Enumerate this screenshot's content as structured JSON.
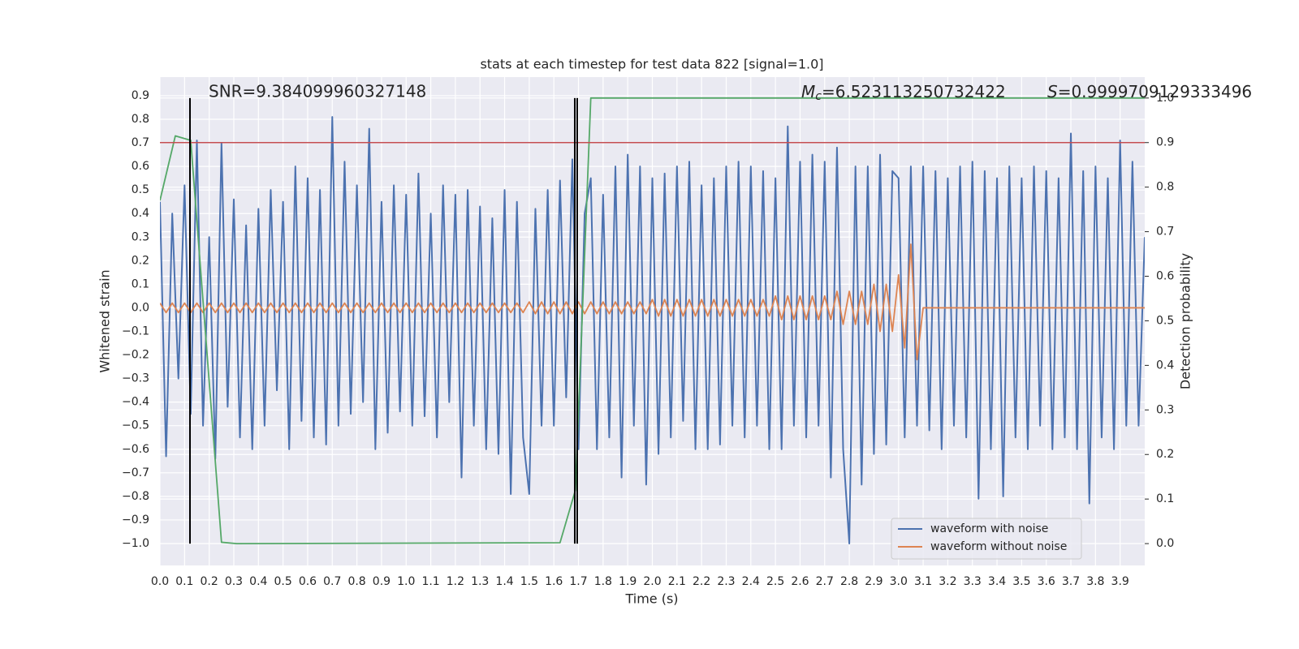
{
  "chart_data": {
    "type": "line",
    "title": "stats at each timestep for test data 822 [signal=1.0]",
    "xlabel": "Time (s)",
    "ylabel": "Whitened strain",
    "y2label": "Detection probability",
    "annotations": {
      "snr": "SNR=9.384099960327148",
      "mc": {
        "symbol": "M",
        "subscript": "c",
        "text": "=6.523113250732422"
      },
      "s": {
        "symbol": "S",
        "text": "=0.9999709129333496"
      }
    },
    "grid": true,
    "background": "#eaeaf2",
    "legend": "lower right",
    "xlim": [
      0,
      4.0
    ],
    "ylim": [
      -1.093,
      0.979
    ],
    "y2lim": [
      -0.049,
      1.047
    ],
    "xticks": [
      {
        "value": 0,
        "label": "0.0"
      },
      {
        "value": 0.1,
        "label": "0.1"
      },
      {
        "value": 0.2,
        "label": "0.2"
      },
      {
        "value": 0.3,
        "label": "0.3"
      },
      {
        "value": 0.4,
        "label": "0.4"
      },
      {
        "value": 0.5,
        "label": "0.5"
      },
      {
        "value": 0.6,
        "label": "0.6"
      },
      {
        "value": 0.7,
        "label": "0.7"
      },
      {
        "value": 0.8,
        "label": "0.8"
      },
      {
        "value": 0.9,
        "label": "0.9"
      },
      {
        "value": 1,
        "label": "1.0"
      },
      {
        "value": 1.1,
        "label": "1.1"
      },
      {
        "value": 1.2,
        "label": "1.2"
      },
      {
        "value": 1.3,
        "label": "1.3"
      },
      {
        "value": 1.4,
        "label": "1.4"
      },
      {
        "value": 1.5,
        "label": "1.5"
      },
      {
        "value": 1.6,
        "label": "1.6"
      },
      {
        "value": 1.7,
        "label": "1.7"
      },
      {
        "value": 1.8,
        "label": "1.8"
      },
      {
        "value": 1.9,
        "label": "1.9"
      },
      {
        "value": 2,
        "label": "2.0"
      },
      {
        "value": 2.1,
        "label": "2.1"
      },
      {
        "value": 2.2,
        "label": "2.2"
      },
      {
        "value": 2.3,
        "label": "2.3"
      },
      {
        "value": 2.4,
        "label": "2.4"
      },
      {
        "value": 2.5,
        "label": "2.5"
      },
      {
        "value": 2.6,
        "label": "2.6"
      },
      {
        "value": 2.7,
        "label": "2.7"
      },
      {
        "value": 2.8,
        "label": "2.8"
      },
      {
        "value": 2.9,
        "label": "2.9"
      },
      {
        "value": 3,
        "label": "3.0"
      },
      {
        "value": 3.1,
        "label": "3.1"
      },
      {
        "value": 3.2,
        "label": "3.2"
      },
      {
        "value": 3.3,
        "label": "3.3"
      },
      {
        "value": 3.4,
        "label": "3.4"
      },
      {
        "value": 3.5,
        "label": "3.5"
      },
      {
        "value": 3.6,
        "label": "3.6"
      },
      {
        "value": 3.7,
        "label": "3.7"
      },
      {
        "value": 3.8,
        "label": "3.8"
      },
      {
        "value": 3.9,
        "label": "3.9"
      }
    ],
    "yticks": [
      {
        "value": -1,
        "label": "−1.0"
      },
      {
        "value": -0.9,
        "label": "−0.9"
      },
      {
        "value": -0.8,
        "label": "−0.8"
      },
      {
        "value": -0.7,
        "label": "−0.7"
      },
      {
        "value": -0.6,
        "label": "−0.6"
      },
      {
        "value": -0.5,
        "label": "−0.5"
      },
      {
        "value": -0.4,
        "label": "−0.4"
      },
      {
        "value": -0.3,
        "label": "−0.3"
      },
      {
        "value": -0.2,
        "label": "−0.2"
      },
      {
        "value": -0.1,
        "label": "−0.1"
      },
      {
        "value": 0,
        "label": "0.0"
      },
      {
        "value": 0.1,
        "label": "0.1"
      },
      {
        "value": 0.2,
        "label": "0.2"
      },
      {
        "value": 0.3,
        "label": "0.3"
      },
      {
        "value": 0.4,
        "label": "0.4"
      },
      {
        "value": 0.5,
        "label": "0.5"
      },
      {
        "value": 0.6,
        "label": "0.6"
      },
      {
        "value": 0.7,
        "label": "0.7"
      },
      {
        "value": 0.8,
        "label": "0.8"
      },
      {
        "value": 0.9,
        "label": "0.9"
      }
    ],
    "y2ticks": [
      {
        "value": 0,
        "label": "0.0"
      },
      {
        "value": 0.1,
        "label": "0.1"
      },
      {
        "value": 0.2,
        "label": "0.2"
      },
      {
        "value": 0.3,
        "label": "0.3"
      },
      {
        "value": 0.4,
        "label": "0.4"
      },
      {
        "value": 0.5,
        "label": "0.5"
      },
      {
        "value": 0.6,
        "label": "0.6"
      },
      {
        "value": 0.7,
        "label": "0.7"
      },
      {
        "value": 0.8,
        "label": "0.8"
      },
      {
        "value": 0.9,
        "label": "0.9"
      },
      {
        "value": 1,
        "label": "1.0"
      }
    ],
    "x": [
      0,
      0.025,
      0.05,
      0.075,
      0.1,
      0.125,
      0.15,
      0.175,
      0.2,
      0.225,
      0.25,
      0.275,
      0.3,
      0.325,
      0.35,
      0.375,
      0.4,
      0.425,
      0.45,
      0.475,
      0.5,
      0.525,
      0.55,
      0.575,
      0.6,
      0.625,
      0.65,
      0.675,
      0.7,
      0.725,
      0.75,
      0.775,
      0.8,
      0.825,
      0.85,
      0.875,
      0.9,
      0.925,
      0.95,
      0.975,
      1,
      1.025,
      1.05,
      1.075,
      1.1,
      1.125,
      1.15,
      1.175,
      1.2,
      1.225,
      1.25,
      1.275,
      1.3,
      1.325,
      1.35,
      1.375,
      1.4,
      1.425,
      1.45,
      1.475,
      1.5,
      1.525,
      1.55,
      1.575,
      1.6,
      1.625,
      1.65,
      1.675,
      1.7,
      1.725,
      1.75,
      1.775,
      1.8,
      1.825,
      1.85,
      1.875,
      1.9,
      1.925,
      1.95,
      1.975,
      2,
      2.025,
      2.05,
      2.075,
      2.1,
      2.125,
      2.15,
      2.175,
      2.2,
      2.225,
      2.25,
      2.275,
      2.3,
      2.325,
      2.35,
      2.375,
      2.4,
      2.425,
      2.45,
      2.475,
      2.5,
      2.525,
      2.55,
      2.575,
      2.6,
      2.625,
      2.65,
      2.675,
      2.7,
      2.725,
      2.75,
      2.775,
      2.8,
      2.825,
      2.85,
      2.875,
      2.9,
      2.925,
      2.95,
      2.975,
      3,
      3.025,
      3.05,
      3.075,
      3.1,
      3.125,
      3.15,
      3.175,
      3.2,
      3.225,
      3.25,
      3.275,
      3.3,
      3.325,
      3.35,
      3.375,
      3.4,
      3.425,
      3.45,
      3.475,
      3.5,
      3.525,
      3.55,
      3.575,
      3.6,
      3.625,
      3.65,
      3.675,
      3.7,
      3.725,
      3.75,
      3.775,
      3.8,
      3.825,
      3.85,
      3.875,
      3.9,
      3.925,
      3.95,
      3.975,
      4
    ],
    "series": [
      {
        "name": "waveform with noise",
        "color": "#4c72b0",
        "values": [
          0.45,
          -0.63,
          0.4,
          -0.3,
          0.52,
          -0.45,
          0.71,
          -0.5,
          0.3,
          -0.64,
          0.7,
          -0.42,
          0.46,
          -0.55,
          0.35,
          -0.6,
          0.42,
          -0.5,
          0.5,
          -0.35,
          0.45,
          -0.6,
          0.6,
          -0.48,
          0.55,
          -0.55,
          0.5,
          -0.58,
          0.81,
          -0.5,
          0.62,
          -0.45,
          0.52,
          -0.4,
          0.76,
          -0.6,
          0.45,
          -0.53,
          0.52,
          -0.44,
          0.48,
          -0.5,
          0.57,
          -0.46,
          0.4,
          -0.55,
          0.52,
          -0.4,
          0.48,
          -0.72,
          0.5,
          -0.5,
          0.43,
          -0.6,
          0.38,
          -0.62,
          0.5,
          -0.79,
          0.45,
          -0.55,
          -0.79,
          0.42,
          -0.5,
          0.5,
          -0.5,
          0.54,
          -0.38,
          0.63,
          -0.6,
          0.4,
          0.55,
          -0.6,
          0.48,
          -0.55,
          0.6,
          -0.72,
          0.65,
          -0.5,
          0.6,
          -0.75,
          0.55,
          -0.62,
          0.57,
          -0.55,
          0.6,
          -0.48,
          0.62,
          -0.6,
          0.52,
          -0.6,
          0.55,
          -0.58,
          0.6,
          -0.5,
          0.62,
          -0.55,
          0.6,
          -0.5,
          0.58,
          -0.6,
          0.55,
          -0.6,
          0.77,
          -0.5,
          0.62,
          -0.55,
          0.65,
          -0.5,
          0.62,
          -0.72,
          0.68,
          -0.6,
          -1.0,
          0.6,
          -0.75,
          0.6,
          -0.62,
          0.65,
          -0.58,
          0.58,
          0.55,
          -0.55,
          0.6,
          -0.5,
          0.6,
          -0.52,
          0.58,
          -0.6,
          0.55,
          -0.5,
          0.6,
          -0.55,
          0.62,
          -0.81,
          0.58,
          -0.6,
          0.55,
          -0.8,
          0.6,
          -0.55,
          0.55,
          -0.6,
          0.6,
          -0.5,
          0.58,
          -0.6,
          0.55,
          -0.55,
          0.74,
          -0.6,
          0.58,
          -0.83,
          0.6,
          -0.55,
          0.55,
          -0.6,
          0.71,
          -0.5,
          0.62,
          -0.5,
          0.3
        ]
      },
      {
        "name": "waveform without noise",
        "color": "#dd8452",
        "values": [
          0.02,
          -0.02,
          0.02,
          -0.02,
          0.02,
          -0.02,
          0.02,
          -0.02,
          0.02,
          -0.02,
          0.02,
          -0.02,
          0.02,
          -0.02,
          0.02,
          -0.02,
          0.02,
          -0.02,
          0.02,
          -0.02,
          0.02,
          -0.02,
          0.02,
          -0.02,
          0.02,
          -0.02,
          0.02,
          -0.02,
          0.02,
          -0.02,
          0.02,
          -0.02,
          0.02,
          -0.02,
          0.02,
          -0.02,
          0.02,
          -0.02,
          0.02,
          -0.02,
          0.02,
          -0.02,
          0.02,
          -0.02,
          0.02,
          -0.02,
          0.02,
          -0.02,
          0.02,
          -0.02,
          0.02,
          -0.02,
          0.02,
          -0.02,
          0.02,
          -0.02,
          0.02,
          -0.02,
          0.02,
          -0.02,
          0.025,
          -0.025,
          0.025,
          -0.025,
          0.025,
          -0.025,
          0.025,
          -0.025,
          0.025,
          -0.025,
          0.025,
          -0.025,
          0.025,
          -0.025,
          0.025,
          -0.025,
          0.025,
          -0.025,
          0.025,
          -0.025,
          0.035,
          -0.035,
          0.035,
          -0.035,
          0.035,
          -0.035,
          0.035,
          -0.035,
          0.035,
          -0.035,
          0.035,
          -0.035,
          0.035,
          -0.035,
          0.035,
          -0.035,
          0.035,
          -0.035,
          0.035,
          -0.035,
          0.05,
          -0.05,
          0.05,
          -0.05,
          0.05,
          -0.05,
          0.05,
          -0.05,
          0.05,
          -0.05,
          0.07,
          -0.07,
          0.07,
          -0.07,
          0.07,
          -0.07,
          0.1,
          -0.1,
          0.1,
          -0.1,
          0.14,
          -0.17,
          0.27,
          -0.22,
          0,
          0,
          0,
          0,
          0,
          0,
          0,
          0,
          0,
          0,
          0,
          0,
          0,
          0,
          0,
          0,
          0,
          0,
          0,
          0,
          0,
          0,
          0,
          0,
          0,
          0,
          0,
          0,
          0,
          0,
          0,
          0,
          0,
          0,
          0,
          0,
          0
        ]
      },
      {
        "color": "#55a868",
        "axis": "y2",
        "x": [
          0,
          0.0625,
          0.125,
          0.25,
          0.3125,
          1.625,
          1.6875,
          1.75,
          4.0
        ],
        "values": [
          0.77,
          0.915,
          0.905,
          0.003,
          0,
          0.002,
          0.12,
          1.0,
          1.0
        ]
      }
    ],
    "threshold": {
      "y2": 0.9,
      "color": "#c44e52"
    },
    "vlines": {
      "x": [
        0.122,
        1.685,
        1.695
      ],
      "range": [
        0,
        1
      ],
      "color": "#000000"
    }
  }
}
